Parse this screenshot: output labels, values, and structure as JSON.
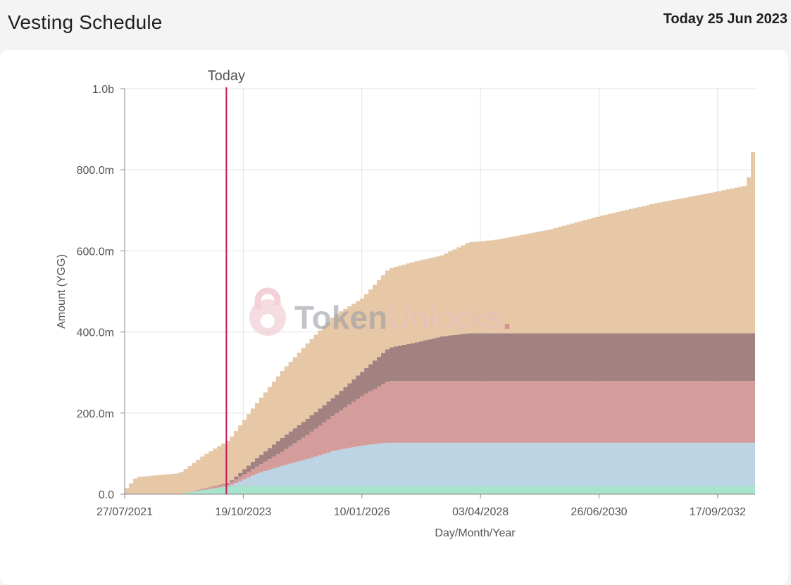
{
  "header": {
    "title": "Vesting Schedule",
    "today_label": "Today 25 Jun 2023"
  },
  "watermark": {
    "part1": "Token",
    "part2": "Unlocks",
    "part3": "."
  },
  "chart_data": {
    "type": "area",
    "stacked": true,
    "step": true,
    "xlabel": "Day/Month/Year",
    "ylabel": "Amount (YGG)",
    "ylim": [
      0,
      1000
    ],
    "y_unit": "millions",
    "y_ticks": [
      {
        "value": 0,
        "label": "0.0"
      },
      {
        "value": 200,
        "label": "200.0m"
      },
      {
        "value": 400,
        "label": "400.0m"
      },
      {
        "value": 600,
        "label": "600.0m"
      },
      {
        "value": 800,
        "label": "800.0m"
      },
      {
        "value": 1000,
        "label": "1.0b"
      }
    ],
    "x_type": "date",
    "xlim": [
      "2021-07-27",
      "2033-06-01"
    ],
    "x_ticks": [
      {
        "date": "2021-07-27",
        "label": "27/07/2021"
      },
      {
        "date": "2023-10-19",
        "label": "19/10/2023"
      },
      {
        "date": "2026-01-10",
        "label": "10/01/2026"
      },
      {
        "date": "2028-04-03",
        "label": "03/04/2028"
      },
      {
        "date": "2030-06-26",
        "label": "26/06/2030"
      },
      {
        "date": "2032-09-17",
        "label": "17/09/2032"
      }
    ],
    "marker": {
      "date": "2023-06-25",
      "label": "Today",
      "color": "#c2185b"
    },
    "grid": true,
    "series": [
      {
        "color": "#a8e3cc",
        "points": [
          [
            "2021-07-27",
            0
          ],
          [
            "2022-07-27",
            0
          ],
          [
            "2022-10-01",
            5
          ],
          [
            "2023-01-01",
            10
          ],
          [
            "2023-04-01",
            15
          ],
          [
            "2023-07-01",
            20
          ],
          [
            "2033-06-01",
            20
          ]
        ]
      },
      {
        "color": "#bcd4e4",
        "points": [
          [
            "2021-07-27",
            0
          ],
          [
            "2023-07-01",
            0
          ],
          [
            "2024-01-01",
            30
          ],
          [
            "2024-07-01",
            50
          ],
          [
            "2025-01-01",
            68
          ],
          [
            "2025-07-01",
            88
          ],
          [
            "2026-01-01",
            100
          ],
          [
            "2026-07-01",
            107
          ],
          [
            "2033-06-01",
            107
          ]
        ]
      },
      {
        "color": "#d59c9c",
        "points": [
          [
            "2021-07-27",
            0
          ],
          [
            "2022-10-01",
            0
          ],
          [
            "2023-01-01",
            4
          ],
          [
            "2023-07-01",
            6
          ],
          [
            "2024-01-01",
            17
          ],
          [
            "2024-07-01",
            35
          ],
          [
            "2025-01-01",
            62
          ],
          [
            "2025-07-01",
            90
          ],
          [
            "2026-01-01",
            123
          ],
          [
            "2026-07-01",
            152
          ],
          [
            "2033-06-01",
            152
          ]
        ]
      },
      {
        "color": "#a28181",
        "points": [
          [
            "2021-07-27",
            0
          ],
          [
            "2023-01-01",
            0
          ],
          [
            "2023-07-01",
            3
          ],
          [
            "2024-01-01",
            20
          ],
          [
            "2024-07-01",
            35
          ],
          [
            "2025-01-01",
            40
          ],
          [
            "2025-07-01",
            45
          ],
          [
            "2026-01-01",
            60
          ],
          [
            "2026-07-01",
            82
          ],
          [
            "2027-01-01",
            95
          ],
          [
            "2027-07-01",
            110
          ],
          [
            "2028-01-01",
            118
          ],
          [
            "2033-06-01",
            118
          ]
        ]
      },
      {
        "color": "#e6c8a6",
        "points": [
          [
            "2021-07-27",
            15
          ],
          [
            "2021-10-01",
            42
          ],
          [
            "2022-07-27",
            52
          ],
          [
            "2022-10-01",
            64
          ],
          [
            "2023-01-01",
            80
          ],
          [
            "2023-07-01",
            105
          ],
          [
            "2024-01-01",
            135
          ],
          [
            "2024-07-01",
            165
          ],
          [
            "2025-01-01",
            187
          ],
          [
            "2025-07-01",
            200
          ],
          [
            "2026-01-01",
            180
          ],
          [
            "2026-07-01",
            195
          ],
          [
            "2027-01-01",
            200
          ],
          [
            "2027-07-01",
            200
          ],
          [
            "2028-01-01",
            224
          ],
          [
            "2028-07-01",
            230
          ],
          [
            "2029-07-01",
            255
          ],
          [
            "2030-07-01",
            290
          ],
          [
            "2031-07-01",
            320
          ],
          [
            "2032-07-01",
            345
          ],
          [
            "2033-04-01",
            365
          ],
          [
            "2033-04-15",
            447
          ],
          [
            "2033-06-01",
            447
          ]
        ]
      }
    ]
  }
}
